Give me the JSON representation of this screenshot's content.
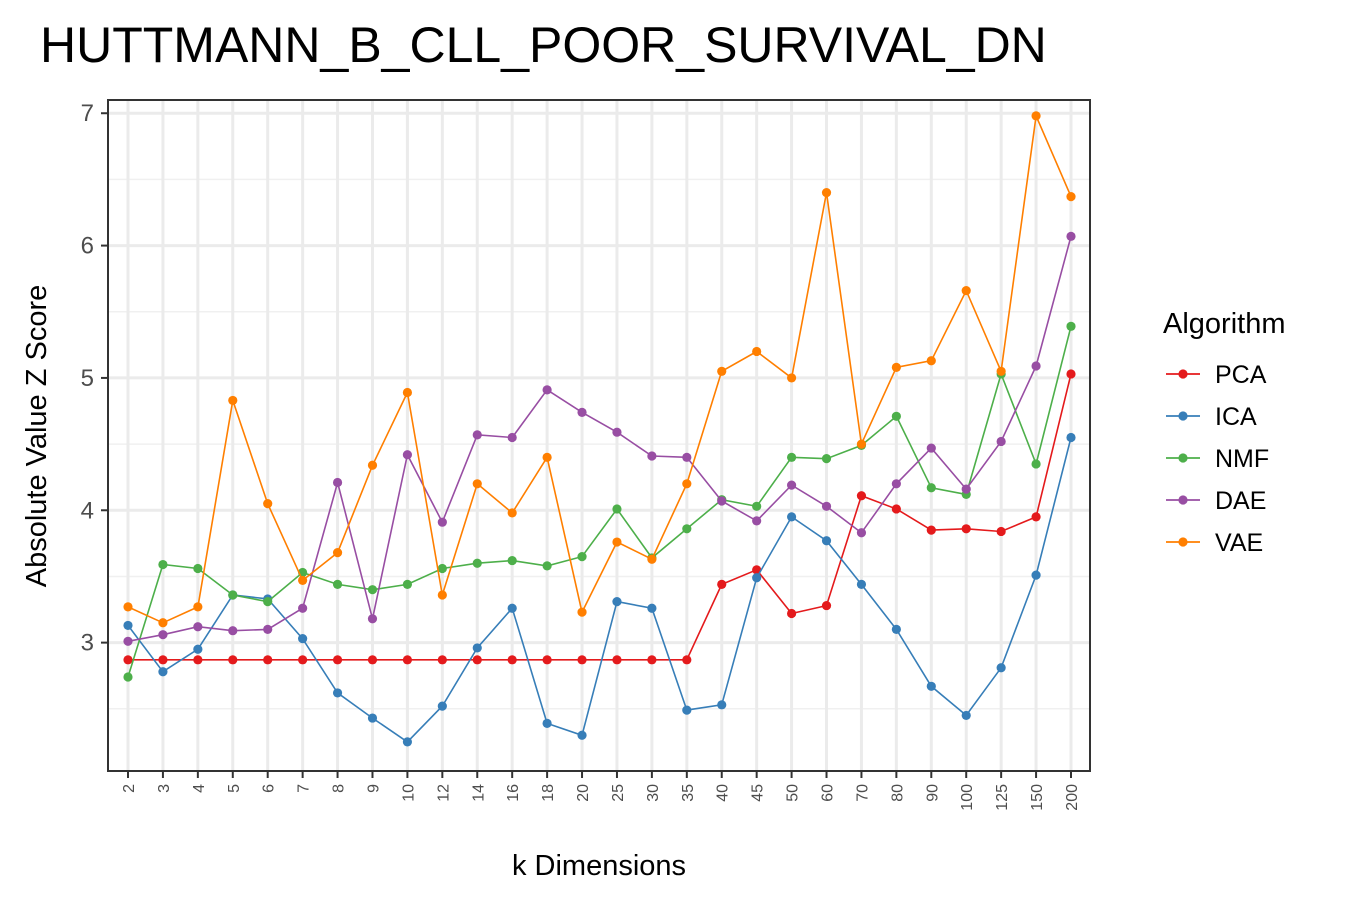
{
  "chart_data": {
    "type": "line",
    "title": "HUTTMANN_B_CLL_POOR_SURVIVAL_DN",
    "xlabel": "k Dimensions",
    "ylabel": "Absolute Value Z Score",
    "categories": [
      "2",
      "3",
      "4",
      "5",
      "6",
      "7",
      "8",
      "9",
      "10",
      "12",
      "14",
      "16",
      "18",
      "20",
      "25",
      "30",
      "35",
      "40",
      "45",
      "50",
      "60",
      "70",
      "80",
      "90",
      "100",
      "125",
      "150",
      "200"
    ],
    "yticks": [
      "3",
      "4",
      "5",
      "6",
      "7"
    ],
    "ylim": [
      2.03,
      7.1
    ],
    "grid": true,
    "legend_title": "Algorithm",
    "legend_position": "right",
    "series": [
      {
        "name": "PCA",
        "color": "#e41a1c",
        "values": [
          2.87,
          2.87,
          2.87,
          2.87,
          2.87,
          2.87,
          2.87,
          2.87,
          2.87,
          2.87,
          2.87,
          2.87,
          2.87,
          2.87,
          2.87,
          2.87,
          2.87,
          3.44,
          3.55,
          3.22,
          3.28,
          4.11,
          4.01,
          3.85,
          3.86,
          3.84,
          3.95,
          5.03
        ]
      },
      {
        "name": "ICA",
        "color": "#377eb8",
        "values": [
          3.13,
          2.78,
          2.95,
          3.36,
          3.33,
          3.03,
          2.62,
          2.43,
          2.25,
          2.52,
          2.96,
          3.26,
          2.39,
          2.3,
          3.31,
          3.26,
          2.49,
          2.53,
          3.49,
          3.95,
          3.77,
          3.44,
          3.1,
          2.67,
          2.45,
          2.81,
          3.51,
          4.55
        ]
      },
      {
        "name": "NMF",
        "color": "#4daf4a",
        "values": [
          2.74,
          3.59,
          3.56,
          3.36,
          3.31,
          3.53,
          3.44,
          3.4,
          3.44,
          3.56,
          3.6,
          3.62,
          3.58,
          3.65,
          4.01,
          3.64,
          3.86,
          4.08,
          4.03,
          4.4,
          4.39,
          4.49,
          4.71,
          4.17,
          4.12,
          5.03,
          4.35,
          5.39
        ]
      },
      {
        "name": "DAE",
        "color": "#984ea3",
        "values": [
          3.01,
          3.06,
          3.12,
          3.09,
          3.1,
          3.26,
          4.21,
          3.18,
          4.42,
          3.91,
          4.57,
          4.55,
          4.91,
          4.74,
          4.59,
          4.41,
          4.4,
          4.07,
          3.92,
          4.19,
          4.03,
          3.83,
          4.2,
          4.47,
          4.16,
          4.52,
          5.09,
          6.07
        ]
      },
      {
        "name": "VAE",
        "color": "#ff7f00",
        "values": [
          3.27,
          3.15,
          3.27,
          4.83,
          4.05,
          3.47,
          3.68,
          4.34,
          4.89,
          3.36,
          4.2,
          3.98,
          4.4,
          3.23,
          3.76,
          3.63,
          4.2,
          5.05,
          5.2,
          5.0,
          6.4,
          4.5,
          5.08,
          5.13,
          5.66,
          5.05,
          6.98,
          6.37
        ]
      }
    ]
  }
}
